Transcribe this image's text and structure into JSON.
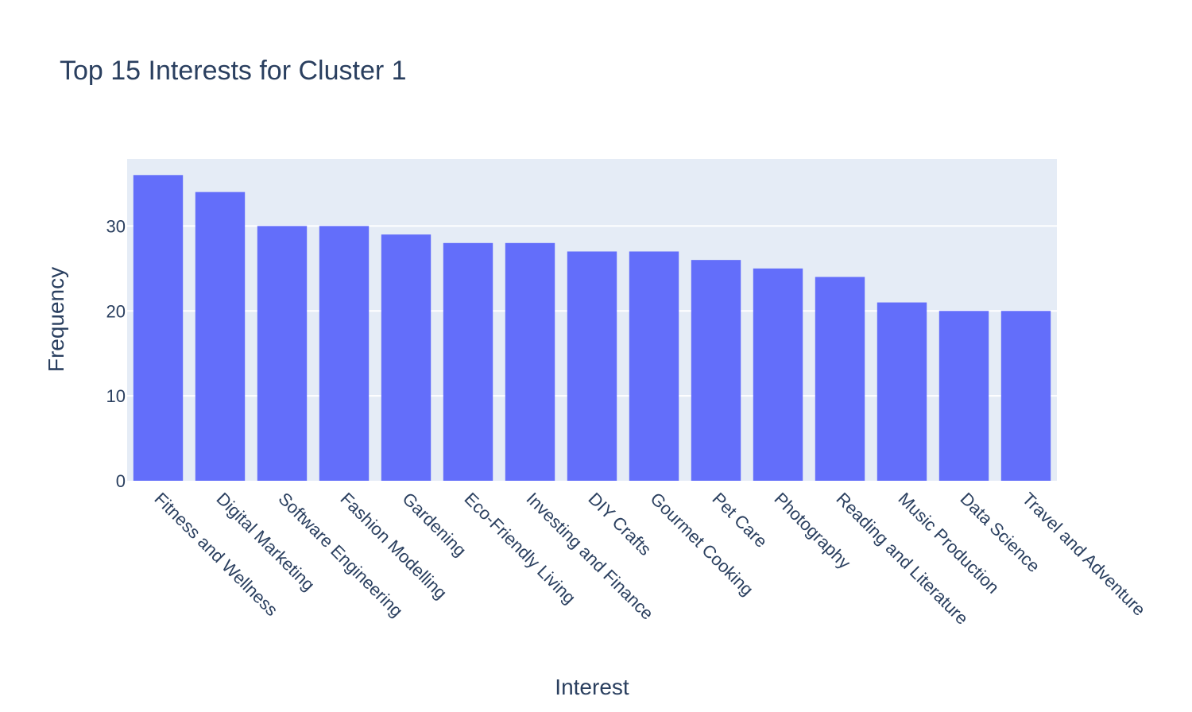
{
  "chart_data": {
    "type": "bar",
    "title": "Top 15 Interests for Cluster 1",
    "xlabel": "Interest",
    "ylabel": "Frequency",
    "categories": [
      "Fitness and Wellness",
      "Digital Marketing",
      "Software Engineering",
      "Fashion Modelling",
      "Gardening",
      "Eco-Friendly Living",
      "Investing and Finance",
      "DIY Crafts",
      "Gourmet Cooking",
      "Pet Care",
      "Photography",
      "Reading and Literature",
      "Music Production",
      "Data Science",
      "Travel and Adventure"
    ],
    "values": [
      36,
      34,
      30,
      30,
      29,
      28,
      28,
      27,
      27,
      26,
      25,
      24,
      21,
      20,
      20
    ],
    "ylim": [
      0,
      37.9
    ],
    "yticks": [
      0,
      10,
      20,
      30
    ],
    "bar_color": "#636efa",
    "plot_background": "#e5ecf6",
    "grid": true
  }
}
